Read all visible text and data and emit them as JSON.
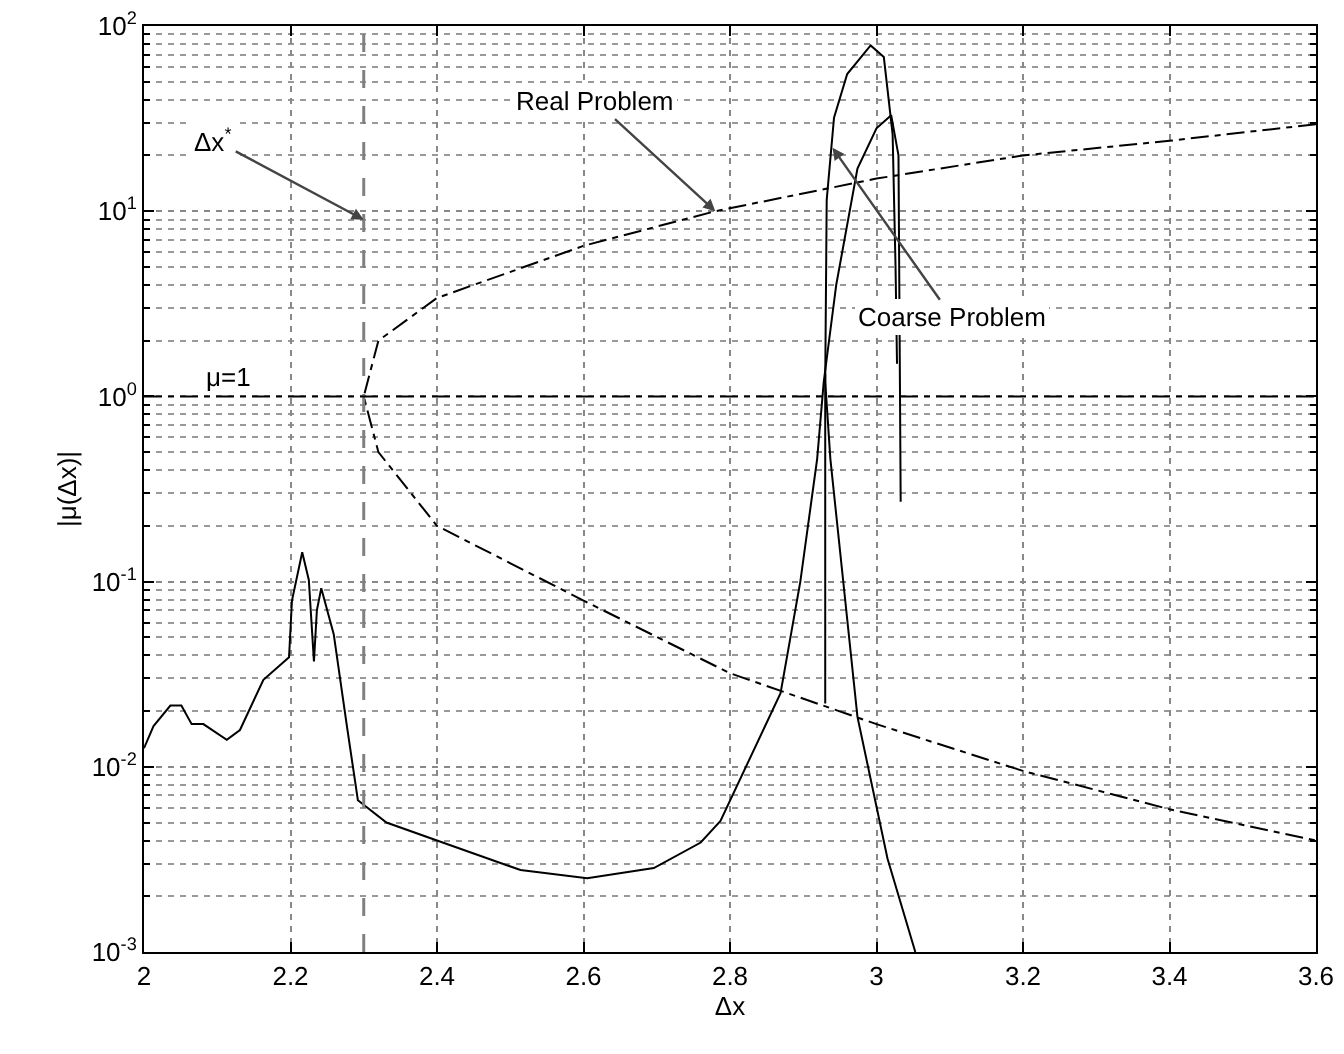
{
  "chart_data": {
    "type": "line",
    "xlabel": "Δx",
    "ylabel": "|μ(Δx)|",
    "log": "y",
    "grid": true,
    "marker": "none",
    "xlim": [
      2,
      3.6
    ],
    "xticks": [
      2,
      2.2,
      2.4,
      2.6,
      2.8,
      3,
      3.2,
      3.4,
      3.6
    ],
    "ylim": [
      0.001,
      100
    ],
    "yticks": [
      {
        "value": 0.001,
        "label": "10$^{-3}$"
      },
      {
        "value": 0.01,
        "label": "10$^{-2}$"
      },
      {
        "value": 0.1,
        "label": "10$^{-1}$"
      },
      {
        "value": 1,
        "label": "10$^{0}$"
      },
      {
        "value": 10,
        "label": "10$^{1}$"
      },
      {
        "value": 100,
        "label": "10$^{2}$"
      }
    ],
    "series": [
      {
        "color": "#000000",
        "line_style": "dashdot",
        "x": [
          3.6,
          3.4,
          3.2,
          3.0,
          2.78,
          2.6,
          2.4,
          2.32,
          2.3,
          2.32,
          2.4,
          2.6,
          2.8,
          3.0,
          3.2,
          3.4,
          3.6
        ],
        "values": [
          29.5,
          24,
          20,
          15,
          10,
          6.5,
          3.4,
          2,
          1,
          0.5,
          0.2,
          0.079,
          0.032,
          0.017,
          0.0095,
          0.0059,
          0.004
        ]
      },
      {
        "color": "#000000",
        "line_style": "solid",
        "x": [
          2.0,
          2.013,
          2.036,
          2.051,
          2.065,
          2.081,
          2.113,
          2.131,
          2.163,
          2.198,
          2.202,
          2.216,
          2.225,
          2.232,
          2.236,
          2.242,
          2.259,
          2.277,
          2.292,
          2.331,
          2.4,
          2.514,
          2.605,
          2.696,
          2.76,
          2.787,
          2.869,
          2.896,
          2.919,
          2.928,
          2.945,
          2.974,
          3.0,
          3.02,
          3.03,
          3.033
        ],
        "values": [
          0.0126,
          0.0166,
          0.0214,
          0.0214,
          0.017,
          0.017,
          0.014,
          0.0158,
          0.0295,
          0.039,
          0.079,
          0.144,
          0.102,
          0.037,
          0.07,
          0.092,
          0.052,
          0.0166,
          0.0066,
          0.005,
          0.004,
          0.00277,
          0.0025,
          0.00284,
          0.0039,
          0.0051,
          0.025,
          0.1,
          0.46,
          1.2,
          4,
          17,
          28,
          33,
          20,
          0.27
        ]
      },
      {
        "color": "#000000",
        "line_style": "solid",
        "x": [
          3.053,
          3.015,
          2.974,
          2.937,
          2.93,
          2.932,
          2.942,
          2.96,
          2.992,
          3.01,
          3.022,
          3.026,
          3.028
        ],
        "values": [
          0.001,
          0.0032,
          0.0186,
          0.46,
          1.2,
          11.5,
          32,
          55,
          78.5,
          68,
          26,
          5,
          1.5
        ]
      },
      {
        "color": "#000000",
        "line_style": "solid",
        "x": [
          2.93,
          2.93
        ],
        "values": [
          0.022,
          1.33
        ]
      }
    ],
    "ref_lines": [
      {
        "axis": "x",
        "value": 2.3,
        "color": "#808080",
        "line_style": "dashed"
      },
      {
        "axis": "y",
        "value": 1,
        "label": "μ=1",
        "color": "#000000",
        "line_style": "dashdot"
      }
    ],
    "annotations": [
      {
        "text": "Δx$^{*}$",
        "x": 2.3,
        "y": 9
      },
      {
        "text": "Real Problem",
        "x": 2.78,
        "y": 10
      },
      {
        "text": "Coarse Problem",
        "x": 2.94,
        "y": 22
      }
    ]
  }
}
